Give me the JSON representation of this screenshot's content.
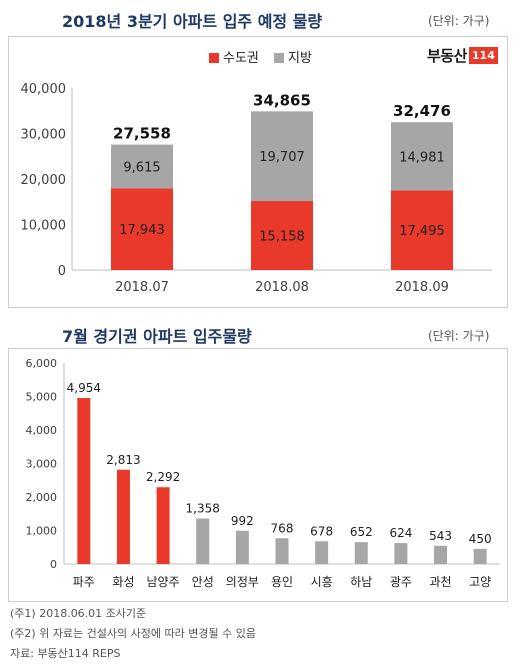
{
  "top": {
    "title": "2018년 3분기 아파트 입주 예정 물량",
    "unit": "(단위: 가구)",
    "logo": {
      "text": "부동산",
      "badge": "114"
    }
  },
  "bottom": {
    "title": "7월 경기권 아파트 입주물량",
    "unit": "(단위: 가구)"
  },
  "colors": {
    "capital": "#e8392b",
    "region": "#a6a6a6",
    "title": "#1f3864"
  },
  "chart_data": [
    {
      "type": "bar",
      "stacked": true,
      "categories": [
        "2018.07",
        "2018.08",
        "2018.09"
      ],
      "series": [
        {
          "name": "수도권",
          "values": [
            17943,
            15158,
            17495
          ],
          "labels": [
            "17,943",
            "15,158",
            "17,495"
          ]
        },
        {
          "name": "지방",
          "values": [
            9615,
            19707,
            14981
          ],
          "labels": [
            "9,615",
            "19,707",
            "14,981"
          ]
        }
      ],
      "totals": [
        27558,
        34865,
        32476
      ],
      "total_labels": [
        "27,558",
        "34,865",
        "32,476"
      ],
      "ylim": [
        0,
        40000
      ],
      "yticks": [
        0,
        10000,
        20000,
        30000,
        40000
      ],
      "ytick_labels": [
        "0",
        "10,000",
        "20,000",
        "30,000",
        "40,000"
      ],
      "legend": "top-center",
      "grid": false
    },
    {
      "type": "bar",
      "categories": [
        "파주",
        "화성",
        "남양주",
        "안성",
        "의정부",
        "용인",
        "시흥",
        "하남",
        "광주",
        "과천",
        "고양"
      ],
      "values": [
        4954,
        2813,
        2292,
        1358,
        992,
        768,
        678,
        652,
        624,
        543,
        450
      ],
      "labels": [
        "4,954",
        "2,813",
        "2,292",
        "1,358",
        "992",
        "768",
        "678",
        "652",
        "624",
        "543",
        "450"
      ],
      "highlight": [
        true,
        true,
        true,
        false,
        false,
        false,
        false,
        false,
        false,
        false,
        false
      ],
      "ylim": [
        0,
        6000
      ],
      "yticks": [
        0,
        1000,
        2000,
        3000,
        4000,
        5000,
        6000
      ],
      "ytick_labels": [
        "0",
        "1,000",
        "2,000",
        "3,000",
        "4,000",
        "5,000",
        "6,000"
      ],
      "grid": false
    }
  ],
  "notes": [
    "(주1) 2018.06.01 조사기준",
    "(주2) 위 자료는 건설사의 사정에 따라 변경될 수 있음",
    "자료: 부동산114 REPS"
  ]
}
